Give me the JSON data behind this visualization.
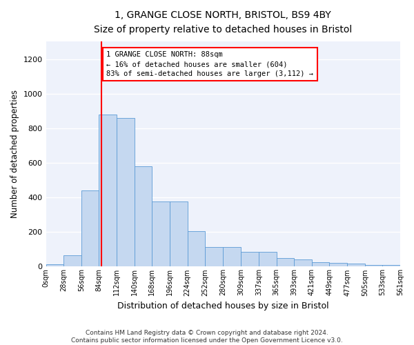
{
  "title": "1, GRANGE CLOSE NORTH, BRISTOL, BS9 4BY",
  "subtitle": "Size of property relative to detached houses in Bristol",
  "xlabel": "Distribution of detached houses by size in Bristol",
  "ylabel": "Number of detached properties",
  "bar_color": "#c5d8f0",
  "bar_edge_color": "#5b9bd5",
  "vline_x": 88,
  "vline_color": "red",
  "annotation_line1": "1 GRANGE CLOSE NORTH: 88sqm",
  "annotation_line2": "← 16% of detached houses are smaller (604)",
  "annotation_line3": "83% of semi-detached houses are larger (3,112) →",
  "annotation_box_color": "red",
  "bin_edges": [
    0,
    28,
    56,
    84,
    112,
    140,
    168,
    196,
    224,
    252,
    280,
    309,
    337,
    365,
    393,
    421,
    449,
    477,
    505,
    533,
    561
  ],
  "bar_heights": [
    15,
    65,
    440,
    880,
    860,
    580,
    378,
    375,
    205,
    115,
    115,
    85,
    85,
    50,
    42,
    25,
    20,
    18,
    10,
    8
  ],
  "ylim": [
    0,
    1300
  ],
  "yticks": [
    0,
    200,
    400,
    600,
    800,
    1000,
    1200
  ],
  "background_color": "#eef2fb",
  "footer_text": "Contains HM Land Registry data © Crown copyright and database right 2024.\nContains public sector information licensed under the Open Government Licence v3.0.",
  "figsize": [
    6.0,
    5.0
  ],
  "dpi": 100
}
